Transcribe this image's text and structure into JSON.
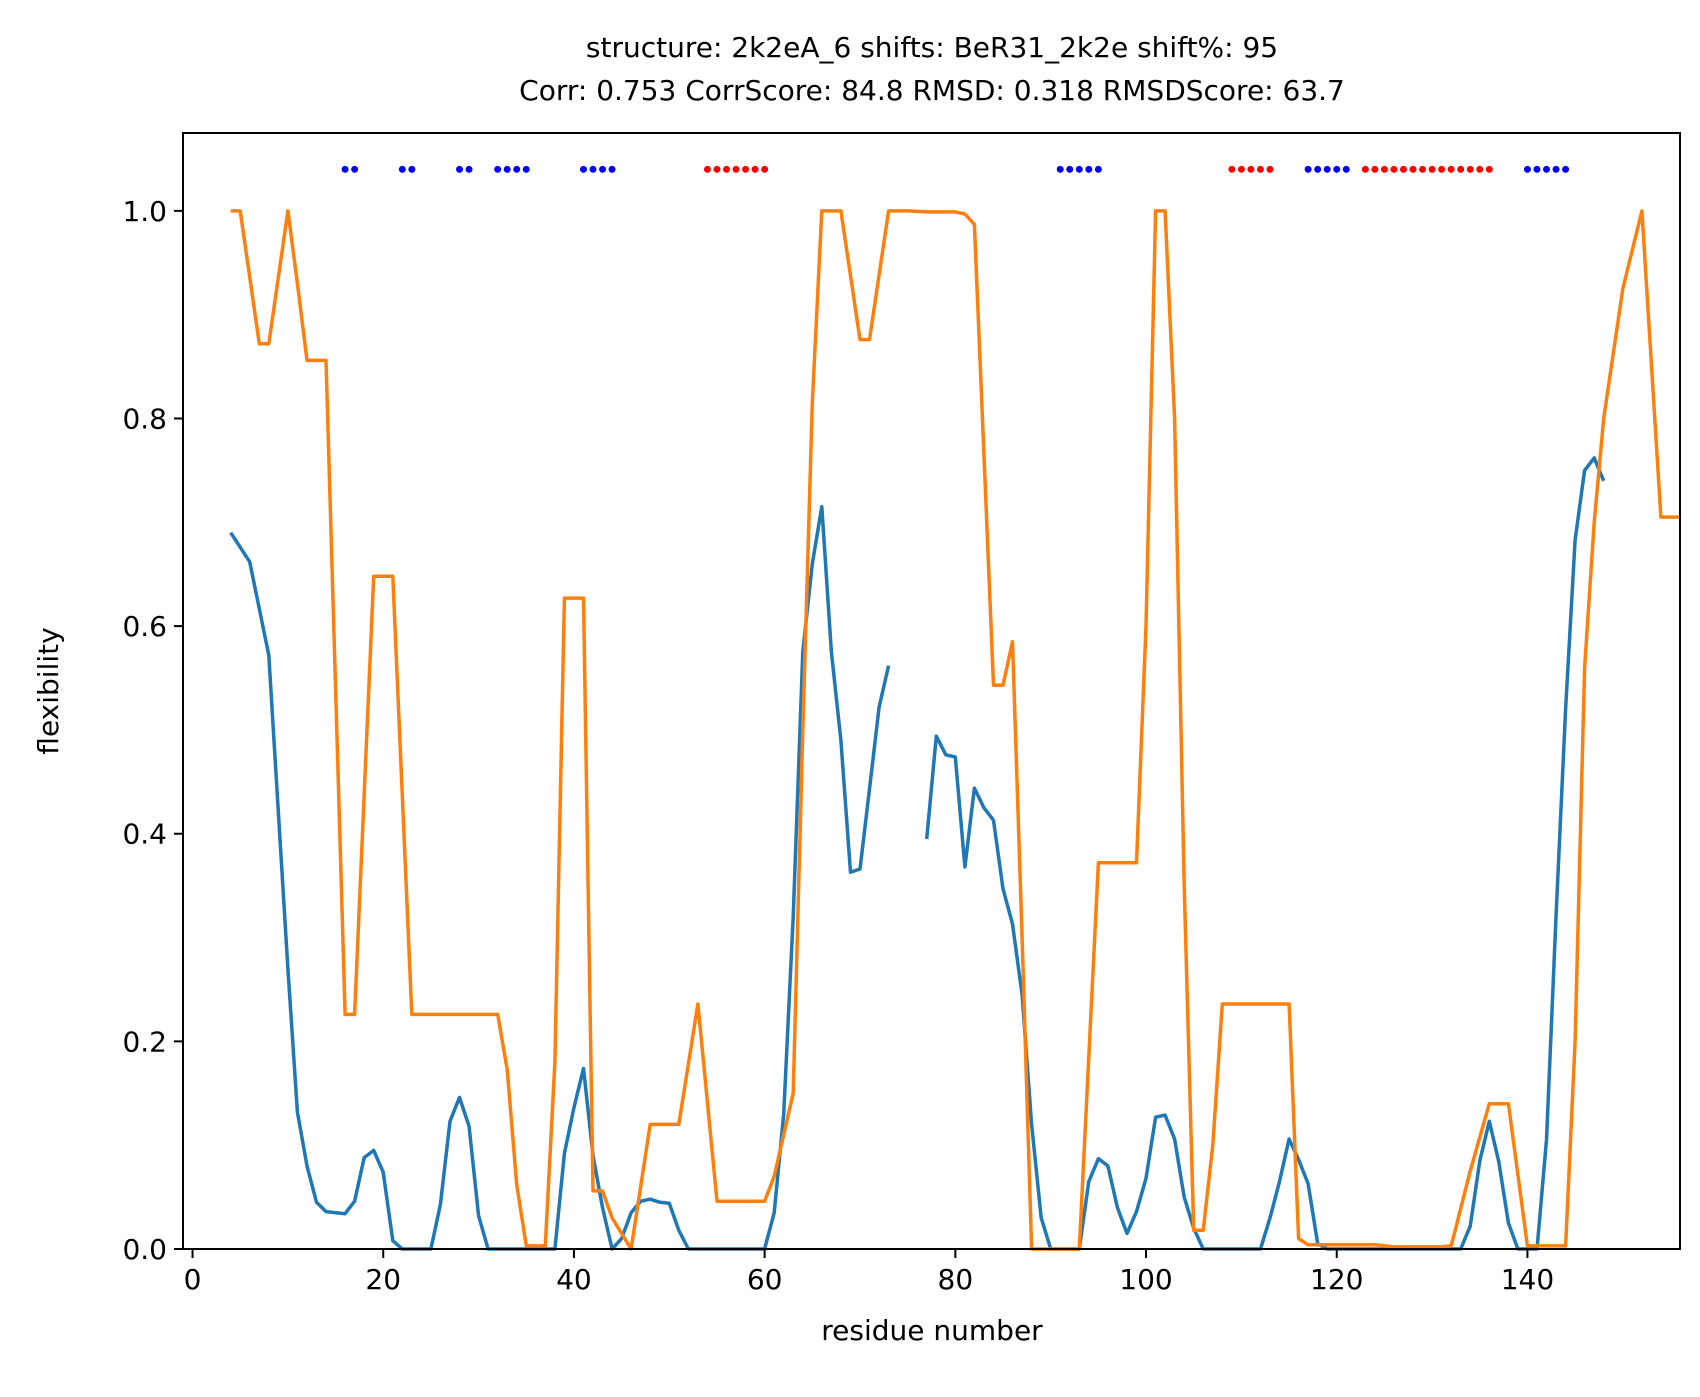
{
  "chart_data": {
    "type": "line",
    "title": "structure: 2k2eA_6 shifts: BeR31_2k2e shift%: 95",
    "subtitle": "Corr: 0.753 CorrScore: 84.8 RMSD: 0.318 RMSDScore: 63.7",
    "xlabel": "residue number",
    "ylabel": "flexibility",
    "xlim": [
      -1,
      156
    ],
    "ylim": [
      0,
      1.075
    ],
    "xticks": [
      0,
      20,
      40,
      60,
      80,
      100,
      120,
      140
    ],
    "yticks": [
      0.0,
      0.2,
      0.4,
      0.6,
      0.8,
      1.0
    ],
    "xtick_labels": [
      "0",
      "20",
      "40",
      "60",
      "80",
      "100",
      "120",
      "140"
    ],
    "ytick_labels": [
      "0.0",
      "0.2",
      "0.4",
      "0.6",
      "0.8",
      "1.0"
    ],
    "grid": false,
    "series": [
      {
        "color": "#1f77b4",
        "segments": [
          [
            [
              4,
              0.69
            ],
            [
              6,
              0.662
            ],
            [
              8,
              0.572
            ],
            [
              9,
              0.42
            ],
            [
              10,
              0.27
            ],
            [
              11,
              0.132
            ],
            [
              12,
              0.08
            ],
            [
              13,
              0.045
            ],
            [
              14,
              0.036
            ],
            [
              16,
              0.034
            ],
            [
              17,
              0.046
            ],
            [
              18,
              0.088
            ],
            [
              19,
              0.095
            ],
            [
              20,
              0.074
            ],
            [
              21,
              0.008
            ],
            [
              22,
              0.0
            ],
            [
              25,
              0.0
            ],
            [
              26,
              0.043
            ],
            [
              27,
              0.123
            ],
            [
              28,
              0.146
            ],
            [
              29,
              0.118
            ],
            [
              30,
              0.032
            ],
            [
              31,
              0.0
            ],
            [
              38,
              0.0
            ],
            [
              39,
              0.092
            ],
            [
              40,
              0.136
            ],
            [
              41,
              0.174
            ],
            [
              42,
              0.09
            ],
            [
              43,
              0.04
            ],
            [
              44,
              0.0
            ],
            [
              45,
              0.01
            ],
            [
              46,
              0.035
            ],
            [
              47,
              0.046
            ],
            [
              48,
              0.048
            ],
            [
              49,
              0.045
            ],
            [
              50,
              0.044
            ],
            [
              51,
              0.018
            ],
            [
              52,
              0.0
            ],
            [
              60,
              0.0
            ],
            [
              61,
              0.035
            ],
            [
              62,
              0.13
            ],
            [
              63,
              0.32
            ],
            [
              64,
              0.575
            ],
            [
              65,
              0.66
            ],
            [
              66,
              0.715
            ],
            [
              67,
              0.575
            ],
            [
              68,
              0.49
            ],
            [
              69,
              0.363
            ],
            [
              70,
              0.366
            ],
            [
              71,
              0.443
            ],
            [
              72,
              0.522
            ],
            [
              73,
              0.562
            ]
          ],
          [
            [
              77,
              0.395
            ],
            [
              78,
              0.494
            ],
            [
              79,
              0.476
            ],
            [
              80,
              0.474
            ],
            [
              81,
              0.368
            ],
            [
              82,
              0.444
            ],
            [
              83,
              0.425
            ],
            [
              84,
              0.413
            ],
            [
              85,
              0.347
            ],
            [
              86,
              0.313
            ],
            [
              87,
              0.245
            ],
            [
              88,
              0.12
            ],
            [
              89,
              0.03
            ],
            [
              90,
              0.0
            ],
            [
              93,
              0.0
            ],
            [
              94,
              0.065
            ],
            [
              95,
              0.087
            ],
            [
              96,
              0.08
            ],
            [
              97,
              0.04
            ],
            [
              98,
              0.015
            ],
            [
              99,
              0.036
            ],
            [
              100,
              0.068
            ],
            [
              101,
              0.127
            ],
            [
              102,
              0.129
            ],
            [
              103,
              0.106
            ],
            [
              104,
              0.05
            ],
            [
              105,
              0.02
            ],
            [
              106,
              0.0
            ],
            [
              112,
              0.0
            ],
            [
              113,
              0.03
            ],
            [
              114,
              0.065
            ],
            [
              115,
              0.106
            ],
            [
              116,
              0.086
            ],
            [
              117,
              0.063
            ],
            [
              118,
              0.005
            ],
            [
              119,
              0.0
            ],
            [
              133,
              0.0
            ],
            [
              134,
              0.022
            ],
            [
              135,
              0.085
            ],
            [
              136,
              0.123
            ],
            [
              137,
              0.084
            ],
            [
              138,
              0.025
            ],
            [
              139,
              0.0
            ],
            [
              141,
              0.0
            ],
            [
              142,
              0.105
            ],
            [
              143,
              0.32
            ],
            [
              144,
              0.52
            ],
            [
              145,
              0.683
            ],
            [
              146,
              0.75
            ],
            [
              147,
              0.762
            ],
            [
              148,
              0.74
            ]
          ]
        ]
      },
      {
        "color": "#ff7f0e",
        "segments": [
          [
            [
              4,
              1.0
            ],
            [
              5,
              1.0
            ],
            [
              7,
              0.872
            ],
            [
              8,
              0.872
            ],
            [
              10,
              1.0
            ],
            [
              11,
              0.93
            ],
            [
              12,
              0.856
            ],
            [
              14,
              0.856
            ],
            [
              16,
              0.226
            ],
            [
              17,
              0.226
            ],
            [
              19,
              0.648
            ],
            [
              21,
              0.648
            ],
            [
              23,
              0.226
            ],
            [
              32,
              0.226
            ],
            [
              33,
              0.173
            ],
            [
              34,
              0.062
            ],
            [
              35,
              0.003
            ],
            [
              37,
              0.003
            ],
            [
              38,
              0.18
            ],
            [
              39,
              0.627
            ],
            [
              41,
              0.627
            ],
            [
              42,
              0.056
            ],
            [
              43,
              0.056
            ],
            [
              44,
              0.03
            ],
            [
              46,
              0.0
            ],
            [
              48,
              0.12
            ],
            [
              51,
              0.12
            ],
            [
              53,
              0.236
            ],
            [
              55,
              0.046
            ],
            [
              60,
              0.046
            ],
            [
              61,
              0.07
            ],
            [
              63,
              0.15
            ],
            [
              64,
              0.5
            ],
            [
              65,
              0.815
            ],
            [
              66,
              1.0
            ],
            [
              68,
              1.0
            ],
            [
              70,
              0.876
            ],
            [
              71,
              0.876
            ],
            [
              73,
              1.0
            ],
            [
              75,
              1.0
            ],
            [
              77,
              0.999
            ],
            [
              79,
              0.999
            ],
            [
              80,
              0.999
            ],
            [
              81,
              0.997
            ],
            [
              82,
              0.987
            ],
            [
              84,
              0.543
            ],
            [
              85,
              0.543
            ],
            [
              86,
              0.585
            ],
            [
              87,
              0.3
            ],
            [
              88,
              0.0
            ],
            [
              91,
              0.0
            ],
            [
              93,
              0.0
            ],
            [
              95,
              0.372
            ],
            [
              99,
              0.372
            ],
            [
              100,
              0.6
            ],
            [
              101,
              1.0
            ],
            [
              102,
              1.0
            ],
            [
              103,
              0.8
            ],
            [
              104,
              0.35
            ],
            [
              105,
              0.018
            ],
            [
              106,
              0.018
            ],
            [
              107,
              0.1
            ],
            [
              108,
              0.236
            ],
            [
              115,
              0.236
            ],
            [
              116,
              0.01
            ],
            [
              117,
              0.004
            ],
            [
              124,
              0.004
            ],
            [
              126,
              0.002
            ],
            [
              131,
              0.002
            ],
            [
              132,
              0.003
            ],
            [
              134,
              0.075
            ],
            [
              136,
              0.14
            ],
            [
              138,
              0.14
            ],
            [
              140,
              0.003
            ],
            [
              144,
              0.003
            ],
            [
              145,
              0.2
            ],
            [
              146,
              0.56
            ],
            [
              147,
              0.7
            ],
            [
              148,
              0.8
            ],
            [
              150,
              0.925
            ],
            [
              152,
              1.0
            ],
            [
              154,
              0.705
            ],
            [
              156,
              0.705
            ]
          ]
        ]
      }
    ],
    "markers": {
      "y": 1.04,
      "blue_color": "#0000ff",
      "red_color": "#ff0000",
      "blue_x": [
        16,
        17,
        22,
        23,
        28,
        29,
        32,
        33,
        34,
        35,
        41,
        42,
        43,
        44,
        91,
        92,
        93,
        94,
        95,
        117,
        118,
        119,
        120,
        121,
        140,
        141,
        142,
        143,
        144
      ],
      "red_x": [
        54,
        55,
        56,
        57,
        58,
        59,
        60,
        109,
        110,
        111,
        112,
        113,
        123,
        124,
        125,
        126,
        127,
        128,
        129,
        130,
        131,
        132,
        133,
        134,
        135,
        136
      ]
    }
  }
}
